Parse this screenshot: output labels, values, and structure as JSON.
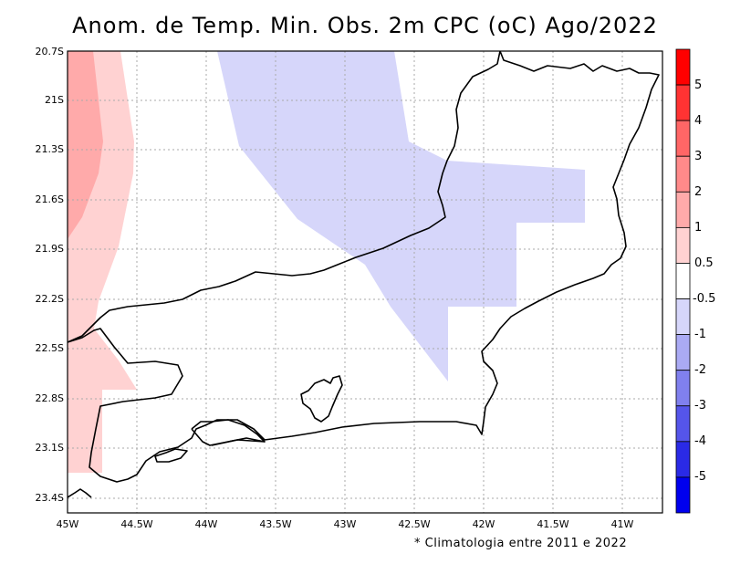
{
  "title": "Anom. de Temp. Min. Obs. 2m CPC (oC) Ago/2022",
  "footnote": "* Climatologia entre 2011 e 2022",
  "map": {
    "lon_labels": [
      "45W",
      "44.5W",
      "44W",
      "43.5W",
      "43W",
      "42.5W",
      "42W",
      "41.5W",
      "41W"
    ],
    "lat_labels": [
      "20.7S",
      "21S",
      "21.3S",
      "21.6S",
      "21.9S",
      "22.2S",
      "22.5S",
      "22.8S",
      "23.1S",
      "23.4S"
    ],
    "grid": true
  },
  "colorbar": {
    "labels": [
      "5",
      "4",
      "3",
      "2",
      "1",
      "0.5",
      "-0.5",
      "-1",
      "-2",
      "-3",
      "-4",
      "-5"
    ],
    "colors": [
      "#ff0000",
      "#ff3333",
      "#ff6666",
      "#ff8a8a",
      "#ffaaaa",
      "#ffd2d2",
      "#ffffff",
      "#d6d6fa",
      "#aaaaf4",
      "#8080ee",
      "#5555ea",
      "#2a2ae6",
      "#0000ee"
    ]
  }
}
